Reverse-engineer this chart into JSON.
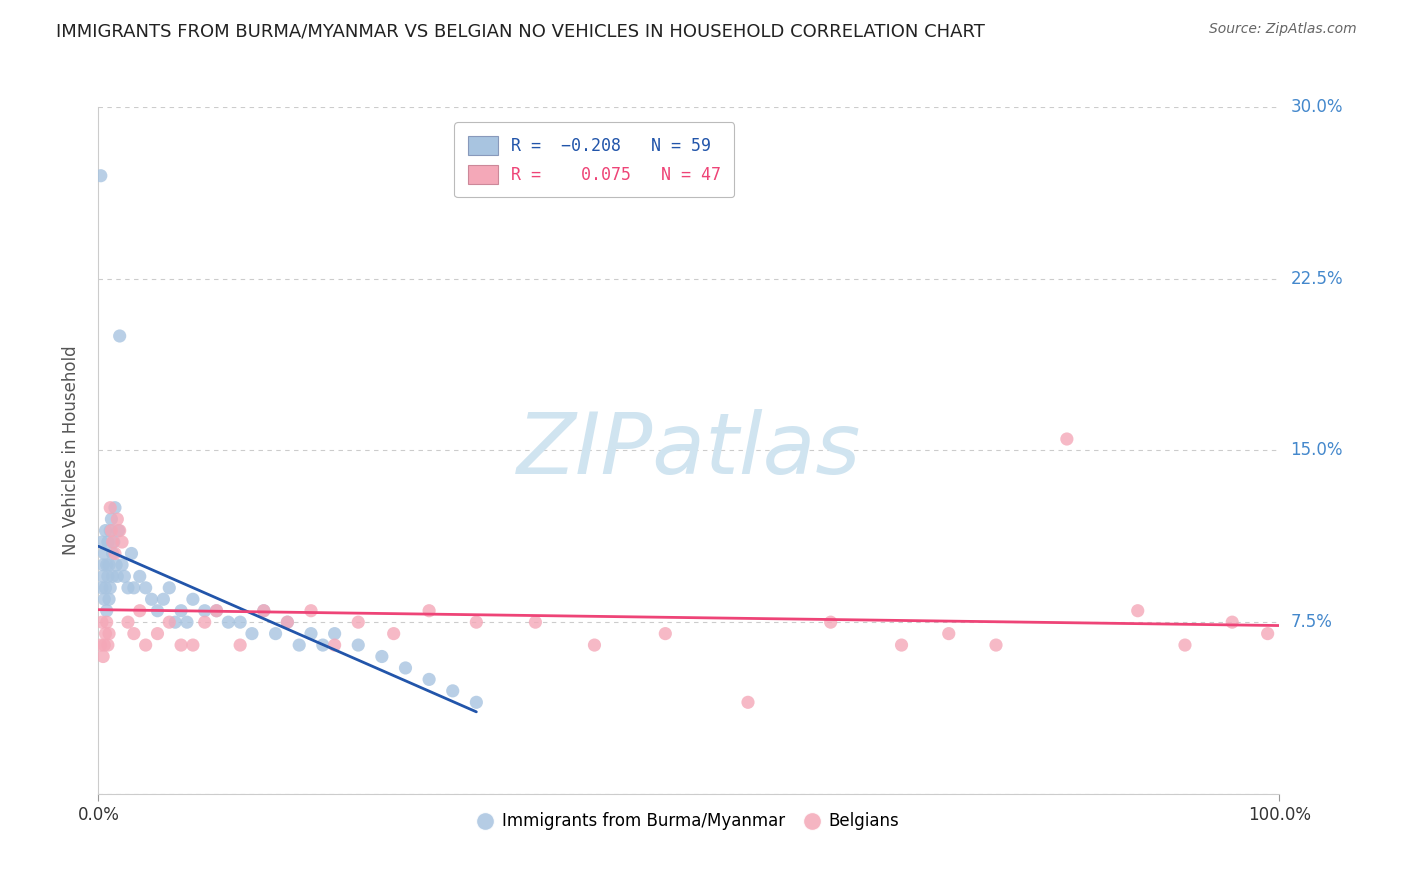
{
  "title": "IMMIGRANTS FROM BURMA/MYANMAR VS BELGIAN NO VEHICLES IN HOUSEHOLD CORRELATION CHART",
  "source": "Source: ZipAtlas.com",
  "ylabel": "No Vehicles in Household",
  "blue_R": -0.208,
  "blue_N": 59,
  "pink_R": 0.075,
  "pink_N": 47,
  "blue_color": "#a8c4e0",
  "pink_color": "#f4a8b8",
  "blue_line_color": "#2255aa",
  "pink_line_color": "#ee4477",
  "watermark": "ZIPatlas",
  "watermark_color": "#d0e4f0",
  "background_color": "#ffffff",
  "grid_color": "#cccccc",
  "right_tick_color": "#4488cc",
  "blue_scatter_x": [
    0.2,
    0.3,
    0.3,
    0.4,
    0.4,
    0.5,
    0.5,
    0.6,
    0.6,
    0.7,
    0.7,
    0.8,
    0.8,
    0.9,
    0.9,
    1.0,
    1.0,
    1.1,
    1.2,
    1.2,
    1.3,
    1.4,
    1.5,
    1.6,
    1.7,
    1.8,
    2.0,
    2.2,
    2.5,
    2.8,
    3.0,
    3.5,
    4.0,
    4.5,
    5.0,
    5.5,
    6.0,
    6.5,
    7.0,
    7.5,
    8.0,
    9.0,
    10.0,
    11.0,
    12.0,
    13.0,
    14.0,
    15.0,
    16.0,
    17.0,
    18.0,
    19.0,
    20.0,
    22.0,
    24.0,
    26.0,
    28.0,
    30.0,
    32.0
  ],
  "blue_scatter_y": [
    27.0,
    9.0,
    11.0,
    10.0,
    9.5,
    8.5,
    10.5,
    9.0,
    11.5,
    8.0,
    10.0,
    9.5,
    11.0,
    8.5,
    10.0,
    9.0,
    11.5,
    12.0,
    10.5,
    9.5,
    11.0,
    12.5,
    10.0,
    9.5,
    11.5,
    20.0,
    10.0,
    9.5,
    9.0,
    10.5,
    9.0,
    9.5,
    9.0,
    8.5,
    8.0,
    8.5,
    9.0,
    7.5,
    8.0,
    7.5,
    8.5,
    8.0,
    8.0,
    7.5,
    7.5,
    7.0,
    8.0,
    7.0,
    7.5,
    6.5,
    7.0,
    6.5,
    7.0,
    6.5,
    6.0,
    5.5,
    5.0,
    4.5,
    4.0
  ],
  "pink_scatter_x": [
    0.2,
    0.3,
    0.4,
    0.5,
    0.6,
    0.7,
    0.8,
    0.9,
    1.0,
    1.1,
    1.2,
    1.4,
    1.6,
    1.8,
    2.0,
    2.5,
    3.0,
    3.5,
    4.0,
    5.0,
    6.0,
    7.0,
    8.0,
    9.0,
    10.0,
    12.0,
    14.0,
    16.0,
    18.0,
    20.0,
    22.0,
    25.0,
    28.0,
    32.0,
    37.0,
    42.0,
    48.0,
    55.0,
    62.0,
    68.0,
    72.0,
    76.0,
    82.0,
    88.0,
    92.0,
    96.0,
    99.0
  ],
  "pink_scatter_y": [
    6.5,
    7.5,
    6.0,
    6.5,
    7.0,
    7.5,
    6.5,
    7.0,
    12.5,
    11.5,
    11.0,
    10.5,
    12.0,
    11.5,
    11.0,
    7.5,
    7.0,
    8.0,
    6.5,
    7.0,
    7.5,
    6.5,
    6.5,
    7.5,
    8.0,
    6.5,
    8.0,
    7.5,
    8.0,
    6.5,
    7.5,
    7.0,
    8.0,
    7.5,
    7.5,
    6.5,
    7.0,
    4.0,
    7.5,
    6.5,
    7.0,
    6.5,
    15.5,
    8.0,
    6.5,
    7.5,
    7.0
  ]
}
